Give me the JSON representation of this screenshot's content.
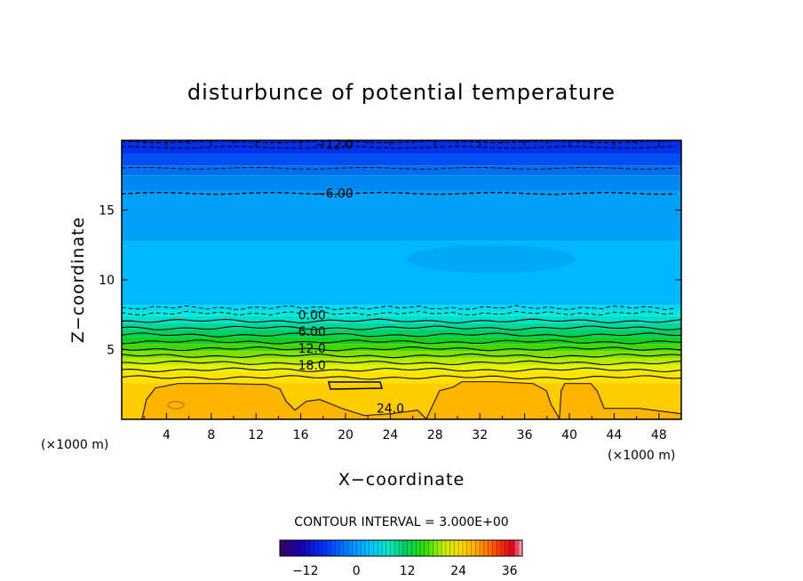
{
  "chart_data": {
    "type": "contour",
    "title": "disturbunce of potential temperature",
    "xlabel": "X−coordinate",
    "ylabel": "Z−coordinate",
    "x_unit_left": "(×1000 m)",
    "x_unit_right": "(×1000 m)",
    "xlim": [
      0,
      50
    ],
    "ylim": [
      0,
      20
    ],
    "x_ticks": [
      4,
      8,
      12,
      16,
      20,
      24,
      28,
      32,
      36,
      40,
      44,
      48
    ],
    "x_tick_labels": [
      "4",
      "8",
      "12",
      "16",
      "20",
      "24",
      "28",
      "32",
      "36",
      "40",
      "44",
      "48"
    ],
    "y_ticks": [
      5,
      10,
      15
    ],
    "y_tick_labels": [
      "5",
      "10",
      "15"
    ],
    "contour_interval_text": "CONTOUR INTERVAL = 3.000E+00",
    "contour_interval": 3.0,
    "contour_labels": [
      {
        "text": "−12.0",
        "x": 19,
        "z": 19.7
      },
      {
        "text": "−6.00",
        "x": 19,
        "z": 16.2
      },
      {
        "text": "0.00",
        "x": 17,
        "z": 7.5
      },
      {
        "text": "6.00",
        "x": 17,
        "z": 6.3
      },
      {
        "text": "12.0",
        "x": 17,
        "z": 5.1
      },
      {
        "text": "18.0",
        "x": 17,
        "z": 3.9
      },
      {
        "text": "24.0",
        "x": 24,
        "z": 0.8
      }
    ],
    "colorbar": {
      "min": -18,
      "max": 39,
      "ticks": [
        -12,
        0,
        12,
        24,
        36
      ],
      "tick_labels": [
        "−12",
        "0",
        "12",
        "24",
        "36"
      ]
    },
    "field_summary": [
      {
        "z_range": [
          0,
          3
        ],
        "value_range": [
          24,
          27
        ]
      },
      {
        "z_range": [
          3,
          8
        ],
        "value_range": [
          0,
          24
        ]
      },
      {
        "z_range": [
          8,
          17
        ],
        "value_range": [
          -6,
          0
        ]
      },
      {
        "z_range": [
          17,
          20
        ],
        "value_range": [
          -15,
          -6
        ]
      }
    ]
  }
}
